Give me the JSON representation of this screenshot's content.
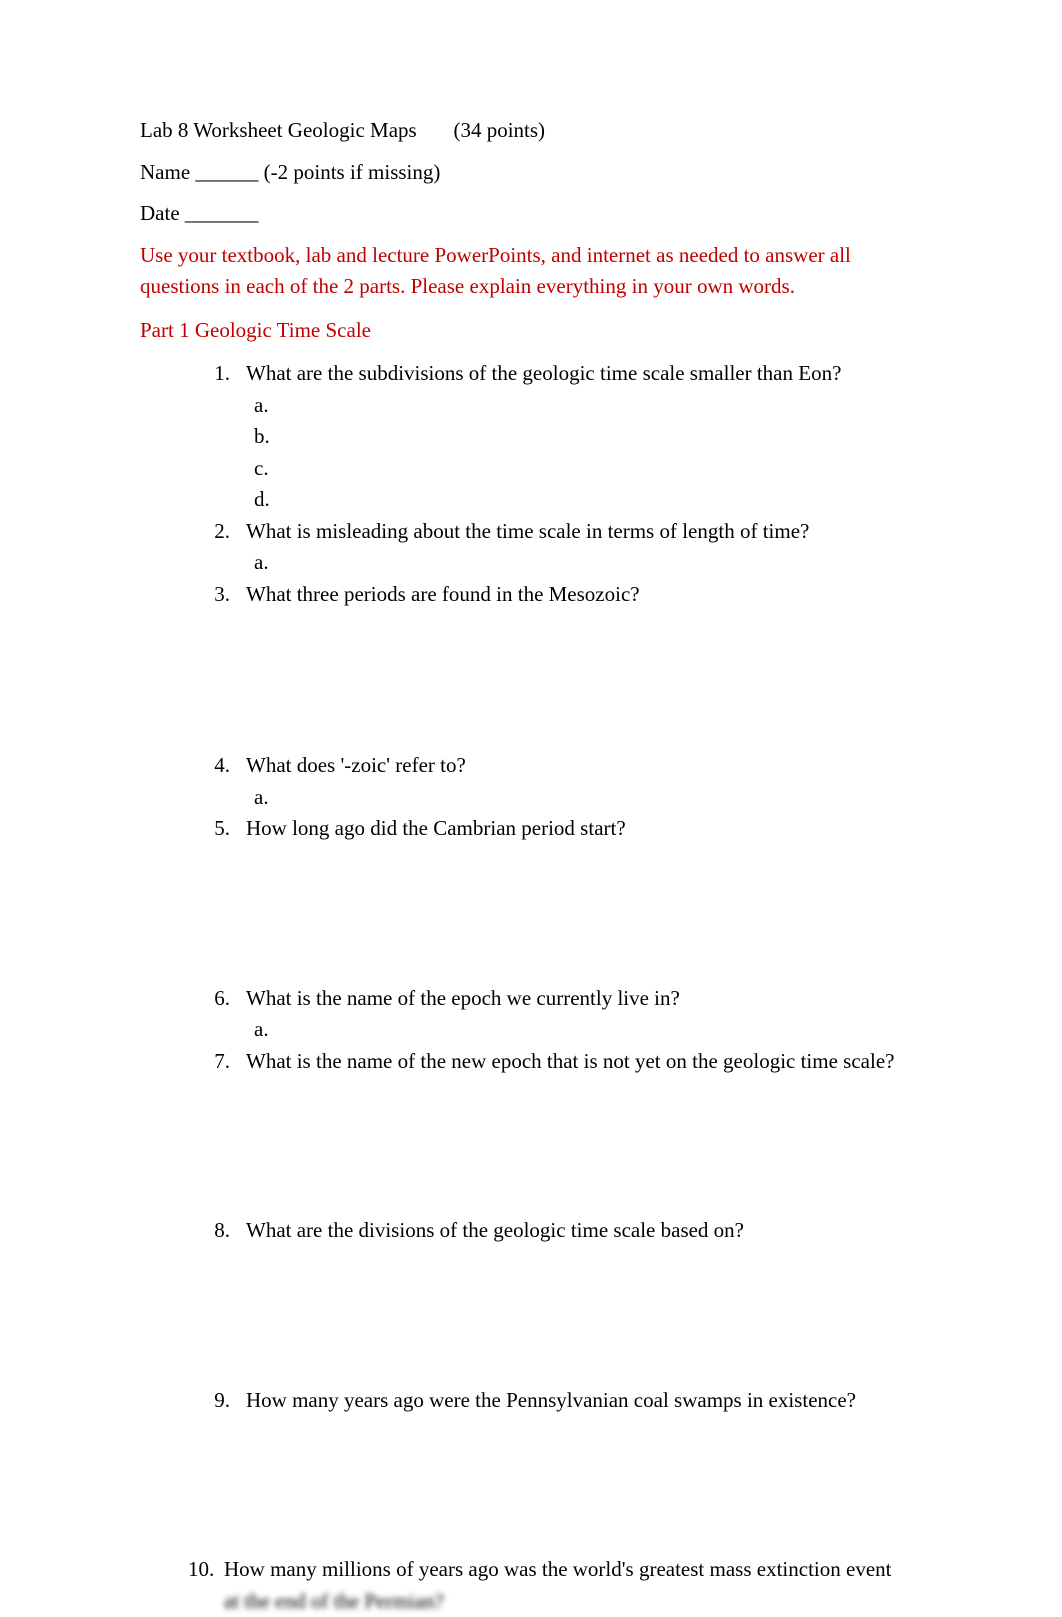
{
  "header": {
    "title_part1": "Lab 8 Worksheet Geologic Maps",
    "title_part2": "(34 points)",
    "name_label": "Name ______ (-2 points if missing)",
    "date_label": "Date _______"
  },
  "instructions": "Use your textbook, lab and lecture PowerPoints, and internet as needed to answer all questions in each of the 2 parts. Please explain everything in your own words.",
  "part1_title": "Part 1 Geologic Time Scale",
  "questions": [
    {
      "number": "1.",
      "text": "What are the subdivisions of the geologic time scale smaller than Eon?",
      "subs": [
        "a.",
        "b.",
        "c.",
        "d."
      ]
    },
    {
      "number": "2.",
      "text": "What is misleading about the time scale in terms of length of time?",
      "subs": [
        "a."
      ]
    },
    {
      "number": "3.",
      "text": "What three periods are found in the Mesozoic?",
      "subs": []
    },
    {
      "number": "4.",
      "text": "What does '-zoic' refer to?",
      "subs": [
        "a."
      ]
    },
    {
      "number": "5.",
      "text": "How long ago did the Cambrian period start?",
      "subs": []
    },
    {
      "number": "6.",
      "text": "What is the name of the epoch we currently live in?",
      "subs": [
        "a."
      ]
    },
    {
      "number": "7.",
      "text": "What is the name of the new epoch that is not yet on the geologic time scale?",
      "subs": []
    },
    {
      "number": "8.",
      "text": "What are the divisions of the geologic time scale based on?",
      "subs": []
    },
    {
      "number": "9.",
      "text": "How many years ago were the Pennsylvanian coal swamps in existence?",
      "subs": []
    }
  ],
  "question10": {
    "number": "10.",
    "text_line1": "How many millions of years ago was the world's greatest mass extinction event",
    "text_line2": "at the end of the Permian?"
  },
  "colors": {
    "text_black": "#000000",
    "text_red": "#c00000",
    "background": "#ffffff"
  },
  "typography": {
    "font_family": "Times New Roman",
    "font_size": 21,
    "line_height": 1.5
  }
}
